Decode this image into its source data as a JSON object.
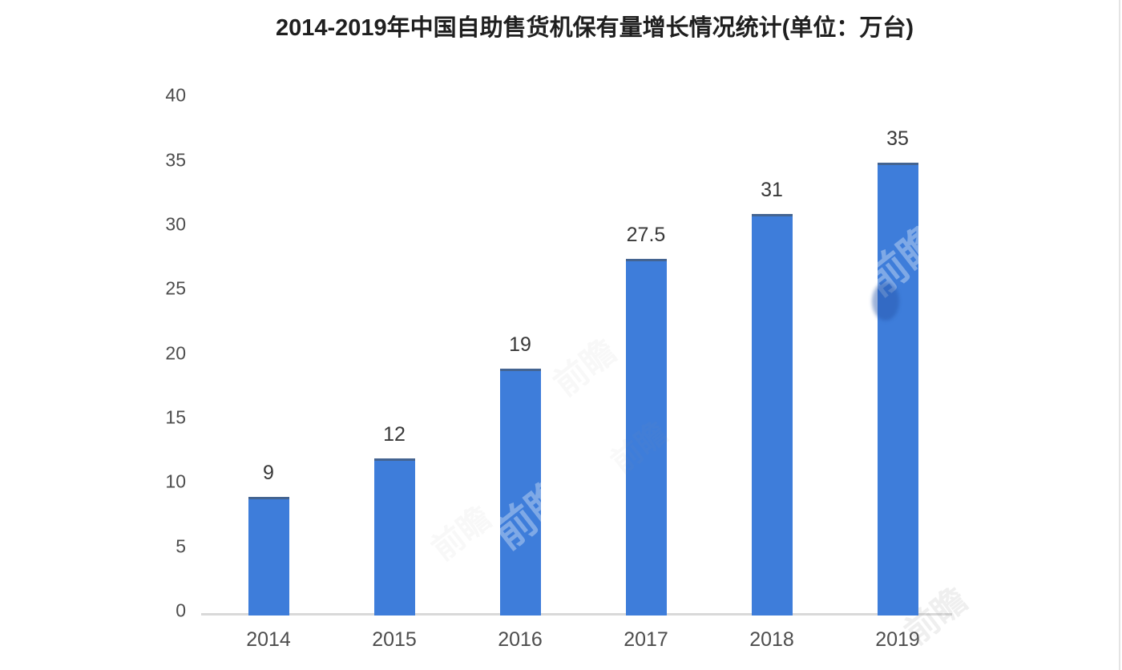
{
  "chart_data": {
    "type": "bar",
    "title": "2014-2019年中国自助售货机保有量增长情况统计(单位：万台)",
    "categories": [
      "2014",
      "2015",
      "2016",
      "2017",
      "2018",
      "2019"
    ],
    "values": [
      9,
      12,
      19,
      27.5,
      31,
      35
    ],
    "value_labels": [
      "9",
      "12",
      "19",
      "27.5",
      "31",
      "35"
    ],
    "series_name": "中国自助售货机保有量",
    "unit": "万台",
    "xlabel": "",
    "ylabel": "",
    "ylim": [
      0,
      40
    ],
    "yticks": [
      0,
      5,
      10,
      15,
      20,
      25,
      30,
      35,
      40
    ],
    "ytick_labels": [
      "0",
      "5",
      "10",
      "15",
      "20",
      "25",
      "30",
      "35",
      "40"
    ],
    "grid": false,
    "legend": "none",
    "colors": {
      "bar": "#3e7dda",
      "bar_top_edge": "#49545f",
      "axis_line": "#d9d9d9",
      "title_text": "#1f1f1f",
      "value_label_text": "#383838",
      "tick_text": "#4d4d4d",
      "background": "#ffffff"
    }
  },
  "watermark": {
    "text": "前瞻"
  }
}
